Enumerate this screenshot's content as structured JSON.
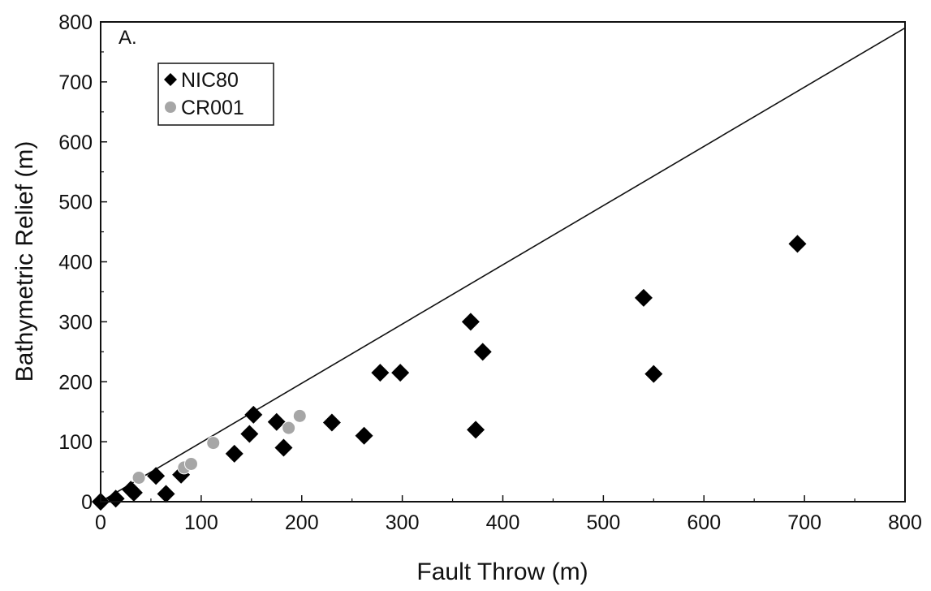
{
  "chart_data": {
    "type": "scatter",
    "panel_label": "A.",
    "xlabel": "Fault Throw (m)",
    "ylabel": "Bathymetric Relief (m)",
    "xlim": [
      0,
      800
    ],
    "ylim": [
      0,
      800
    ],
    "x_ticks": [
      0,
      100,
      200,
      300,
      400,
      500,
      600,
      700,
      800
    ],
    "y_ticks": [
      0,
      100,
      200,
      300,
      400,
      500,
      600,
      700,
      800
    ],
    "grid": false,
    "legend_position": "top-left",
    "reference_line": {
      "from": [
        0,
        0
      ],
      "to": [
        800,
        790
      ]
    },
    "series": [
      {
        "name": "NIC80",
        "marker": "diamond",
        "color": "#000000",
        "points": [
          [
            0,
            0
          ],
          [
            15,
            5
          ],
          [
            30,
            20
          ],
          [
            33,
            15
          ],
          [
            55,
            43
          ],
          [
            65,
            13
          ],
          [
            80,
            45
          ],
          [
            133,
            80
          ],
          [
            148,
            113
          ],
          [
            152,
            145
          ],
          [
            175,
            133
          ],
          [
            182,
            90
          ],
          [
            230,
            132
          ],
          [
            262,
            110
          ],
          [
            278,
            215
          ],
          [
            298,
            215
          ],
          [
            368,
            300
          ],
          [
            373,
            120
          ],
          [
            380,
            250
          ],
          [
            540,
            340
          ],
          [
            550,
            213
          ],
          [
            693,
            430
          ]
        ]
      },
      {
        "name": "CR001",
        "marker": "circle",
        "color": "#a6a6a6",
        "points": [
          [
            38,
            40
          ],
          [
            83,
            57
          ],
          [
            90,
            63
          ],
          [
            112,
            98
          ],
          [
            187,
            123
          ],
          [
            198,
            143
          ]
        ]
      }
    ]
  }
}
